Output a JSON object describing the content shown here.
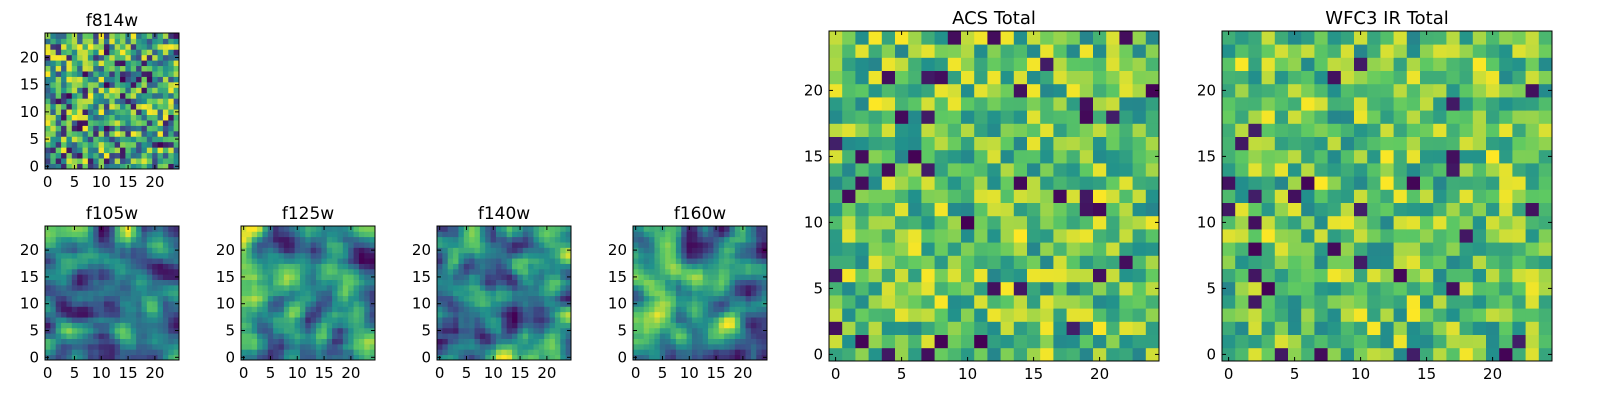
{
  "figure": {
    "background": "#ffffff",
    "colormap": "viridis",
    "colormap_stops": [
      "#440154",
      "#3b528b",
      "#21918c",
      "#5ec962",
      "#fde725"
    ]
  },
  "chart_data": [
    {
      "type": "heatmap",
      "title": "f814w",
      "grid_size": [
        25,
        25
      ],
      "xlim": [
        -0.5,
        24.5
      ],
      "ylim": [
        -0.5,
        24.5
      ],
      "xticks": [
        "0",
        "5",
        "10",
        "15",
        "20"
      ],
      "yticks": [
        "0",
        "5",
        "10",
        "15",
        "20"
      ],
      "value_range": [
        0,
        1
      ],
      "texture": "fine, uncorrelated pixel noise",
      "seed": 11
    },
    {
      "type": "heatmap",
      "title": "f105w",
      "grid_size": [
        25,
        25
      ],
      "xlim": [
        -0.5,
        24.5
      ],
      "ylim": [
        -0.5,
        24.5
      ],
      "xticks": [
        "0",
        "5",
        "10",
        "15",
        "20"
      ],
      "yticks": [
        "0",
        "5",
        "10",
        "15",
        "20"
      ],
      "value_range": [
        0,
        1
      ],
      "texture": "smooth, spatially correlated blobs",
      "seed": 23
    },
    {
      "type": "heatmap",
      "title": "f125w",
      "grid_size": [
        25,
        25
      ],
      "xlim": [
        -0.5,
        24.5
      ],
      "ylim": [
        -0.5,
        24.5
      ],
      "xticks": [
        "0",
        "5",
        "10",
        "15",
        "20"
      ],
      "yticks": [
        "0",
        "5",
        "10",
        "15",
        "20"
      ],
      "value_range": [
        0,
        1
      ],
      "texture": "smooth, spatially correlated blobs",
      "seed": 37
    },
    {
      "type": "heatmap",
      "title": "f140w",
      "grid_size": [
        25,
        25
      ],
      "xlim": [
        -0.5,
        24.5
      ],
      "ylim": [
        -0.5,
        24.5
      ],
      "xticks": [
        "0",
        "5",
        "10",
        "15",
        "20"
      ],
      "yticks": [
        "0",
        "5",
        "10",
        "15",
        "20"
      ],
      "value_range": [
        0,
        1
      ],
      "texture": "smooth, spatially correlated blobs",
      "seed": 41
    },
    {
      "type": "heatmap",
      "title": "f160w",
      "grid_size": [
        25,
        25
      ],
      "xlim": [
        -0.5,
        24.5
      ],
      "ylim": [
        -0.5,
        24.5
      ],
      "xticks": [
        "0",
        "5",
        "10",
        "15",
        "20"
      ],
      "yticks": [
        "0",
        "5",
        "10",
        "15",
        "20"
      ],
      "value_range": [
        0,
        1
      ],
      "texture": "smooth, spatially correlated blobs",
      "seed": 53
    },
    {
      "type": "heatmap",
      "title": "ACS Total",
      "grid_size": [
        25,
        25
      ],
      "xlim": [
        -0.5,
        24.5
      ],
      "ylim": [
        -0.5,
        24.5
      ],
      "xticks": [
        "0",
        "5",
        "10",
        "15",
        "20"
      ],
      "yticks": [
        "0",
        "5",
        "10",
        "15",
        "20"
      ],
      "value_range": [
        0,
        1
      ],
      "texture": "uncorrelated pixel noise, mostly green-yellow with sparse dark pixels",
      "seed": 67
    },
    {
      "type": "heatmap",
      "title": "WFC3 IR Total",
      "grid_size": [
        25,
        25
      ],
      "xlim": [
        -0.5,
        24.5
      ],
      "ylim": [
        -0.5,
        24.5
      ],
      "xticks": [
        "0",
        "5",
        "10",
        "15",
        "20"
      ],
      "yticks": [
        "0",
        "5",
        "10",
        "15",
        "20"
      ],
      "value_range": [
        0,
        1
      ],
      "texture": "uncorrelated pixel noise, mostly green-yellow with sparse dark pixels",
      "seed": 79
    }
  ]
}
